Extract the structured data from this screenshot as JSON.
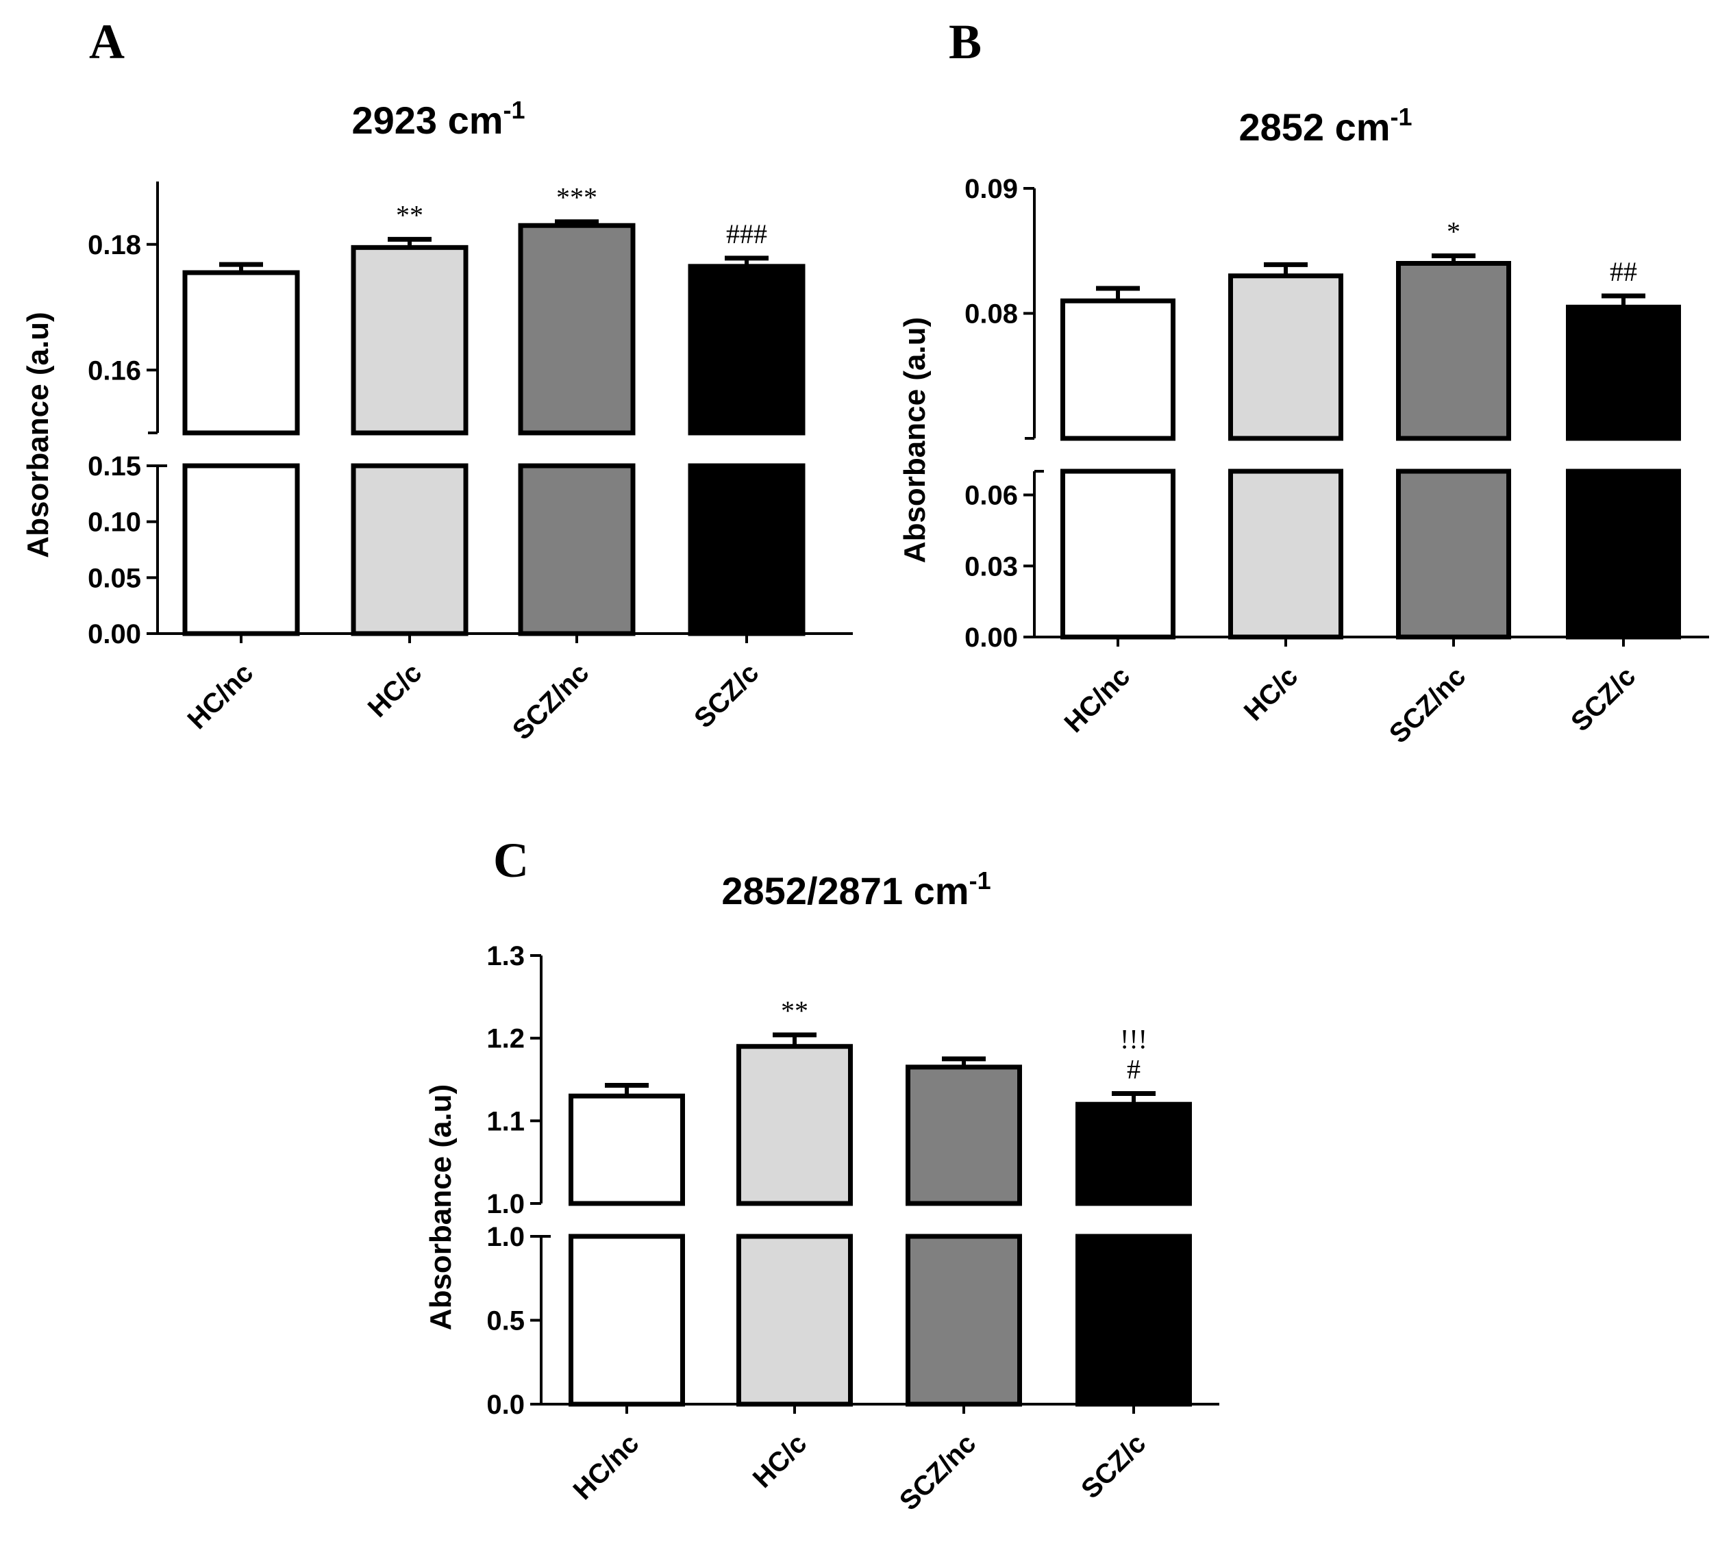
{
  "chart_data": [
    {
      "panel": "A",
      "type": "bar",
      "title": "2923 cm",
      "title_superscript": "-1",
      "ylabel": "Absorbance (a.u)",
      "xlabel": "",
      "categories": [
        "HC/nc",
        "HC/c",
        "SCZ/nc",
        "SCZ/c"
      ],
      "values": [
        0.1755,
        0.1795,
        0.183,
        0.1765
      ],
      "errors": [
        0.0013,
        0.0013,
        0.0006,
        0.0013
      ],
      "fill_colors": [
        "#ffffff",
        "#d9d9d9",
        "#808080",
        "#000000"
      ],
      "significance": [
        "",
        "**",
        "***",
        "###"
      ],
      "axis_break": true,
      "y_lower_range": [
        0,
        0.15
      ],
      "y_upper_range": [
        0.15,
        0.19
      ],
      "y_lower_ticks": [
        "0.00",
        "0.05",
        "0.10",
        "0.15"
      ],
      "y_upper_ticks": [
        "0.16",
        "0.18"
      ]
    },
    {
      "panel": "B",
      "type": "bar",
      "title": "2852 cm",
      "title_superscript": "-1",
      "ylabel": "Absorbance (a.u)",
      "xlabel": "",
      "categories": [
        "HC/nc",
        "HC/c",
        "SCZ/nc",
        "SCZ/c"
      ],
      "values": [
        0.081,
        0.083,
        0.084,
        0.0805
      ],
      "errors": [
        0.001,
        0.0009,
        0.0006,
        0.0009
      ],
      "fill_colors": [
        "#ffffff",
        "#d9d9d9",
        "#808080",
        "#000000"
      ],
      "significance": [
        "",
        "",
        "*",
        "##"
      ],
      "axis_break": true,
      "y_lower_range": [
        0,
        0.07
      ],
      "y_upper_range": [
        0.07,
        0.09
      ],
      "y_lower_ticks": [
        "0.00",
        "0.03",
        "0.06"
      ],
      "y_upper_ticks": [
        "0.08",
        "0.09"
      ]
    },
    {
      "panel": "C",
      "type": "bar",
      "title": "2852/2871 cm",
      "title_superscript": "-1",
      "ylabel": "Absorbance (a.u)",
      "xlabel": "",
      "categories": [
        "HC/nc",
        "HC/c",
        "SCZ/nc",
        "SCZ/c"
      ],
      "values": [
        1.13,
        1.19,
        1.165,
        1.12
      ],
      "errors": [
        0.013,
        0.014,
        0.01,
        0.013
      ],
      "fill_colors": [
        "#ffffff",
        "#d9d9d9",
        "#808080",
        "#000000"
      ],
      "significance": [
        "",
        "**",
        "",
        "!!!\n#"
      ],
      "axis_break": true,
      "y_lower_range": [
        0,
        1.0
      ],
      "y_upper_range": [
        1.0,
        1.3
      ],
      "y_lower_ticks": [
        "0.0",
        "0.5",
        "1.0"
      ],
      "y_upper_ticks": [
        "1.0",
        "1.1",
        "1.2",
        "1.3"
      ]
    }
  ]
}
